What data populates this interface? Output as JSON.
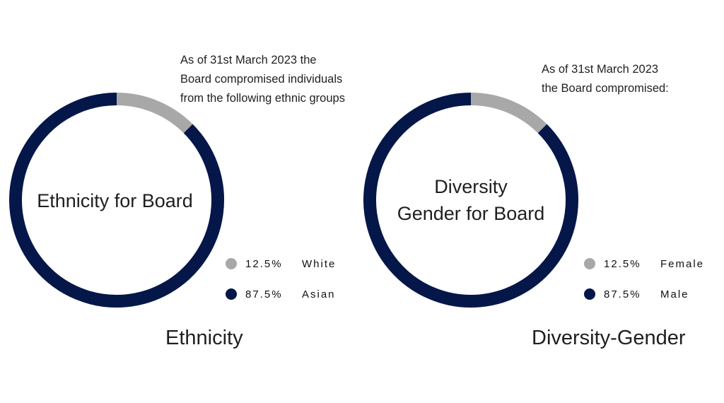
{
  "colors": {
    "primary": "#051749",
    "secondary": "#a8a8a8"
  },
  "chart_data": [
    {
      "type": "pie",
      "center_label": "Ethnicity for Board",
      "note_lines": [
        "As of 31st March 2023 the",
        "Board compromised individuals",
        "from the following ethnic groups"
      ],
      "caption": "Ethnicity",
      "slices": [
        {
          "label": "White",
          "value": 12.5,
          "display": "12.5%",
          "color": "#a8a8a8"
        },
        {
          "label": "Asian",
          "value": 87.5,
          "display": "87.5%",
          "color": "#051749"
        }
      ]
    },
    {
      "type": "pie",
      "center_label_lines": [
        "Diversity",
        "Gender for Board"
      ],
      "note_lines": [
        "As of 31st March 2023",
        "the Board compromised:"
      ],
      "caption": "Diversity-Gender",
      "slices": [
        {
          "label": "Female",
          "value": 12.5,
          "display": "12.5%",
          "color": "#a8a8a8"
        },
        {
          "label": "Male",
          "value": 87.5,
          "display": "87.5%",
          "color": "#051749"
        }
      ]
    }
  ]
}
